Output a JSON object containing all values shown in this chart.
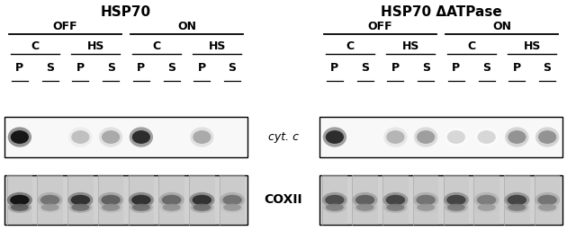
{
  "title1": "HSP70",
  "title2": "HSP70 ΔATPase",
  "label_off": "OFF",
  "label_on": "ON",
  "label_c": "C",
  "label_hs": "HS",
  "label_p": "P",
  "label_s": "S",
  "label_cytc": "cyt. c",
  "label_coxii": "COXII",
  "fig_width": 6.5,
  "fig_height": 2.57,
  "dpi": 100,
  "cytc1_bands": [
    1.0,
    0.0,
    0.25,
    0.35,
    0.9,
    0.0,
    0.35,
    0.0
  ],
  "cytc2_bands": [
    0.9,
    0.0,
    0.3,
    0.4,
    0.15,
    0.15,
    0.45,
    0.45
  ],
  "coxii1_bands": [
    1.0,
    0.5,
    0.85,
    0.6,
    0.85,
    0.55,
    0.85,
    0.5
  ],
  "coxii2_bands": [
    0.7,
    0.6,
    0.75,
    0.5,
    0.75,
    0.45,
    0.75,
    0.5
  ]
}
